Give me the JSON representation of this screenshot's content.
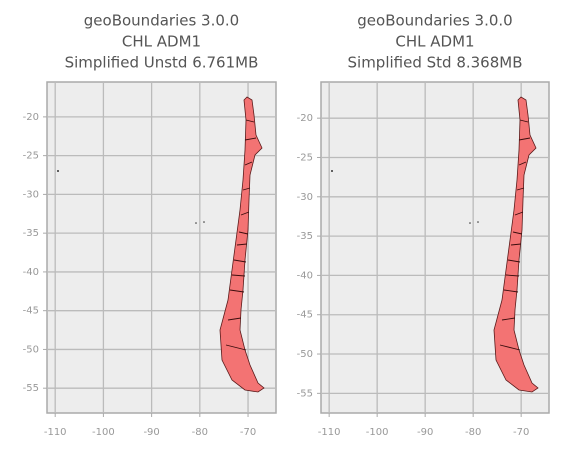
{
  "chart_data": [
    {
      "type": "map",
      "title": [
        "geoBoundaries 3.0.0",
        "CHL ADM1",
        "Simplified Unstd 6.761MB"
      ],
      "xlim": [
        -111.7,
        -64.2
      ],
      "ylim": [
        -58.2,
        -15.5
      ],
      "xticks": [
        -110,
        -100,
        -90,
        -80,
        -70
      ],
      "yticks": [
        -20,
        -25,
        -30,
        -35,
        -40,
        -45,
        -50,
        -55
      ],
      "grid": true
    },
    {
      "type": "map",
      "title": [
        "geoBoundaries 3.0.0",
        "CHL ADM1",
        "Simplified Std 8.368MB"
      ],
      "xlim": [
        -111.7,
        -64.2
      ],
      "ylim": [
        -57.5,
        -15.4
      ],
      "xticks": [
        -110,
        -100,
        -90,
        -80,
        -70
      ],
      "yticks": [
        -20,
        -25,
        -30,
        -35,
        -40,
        -45,
        -50,
        -55
      ],
      "grid": true
    }
  ]
}
